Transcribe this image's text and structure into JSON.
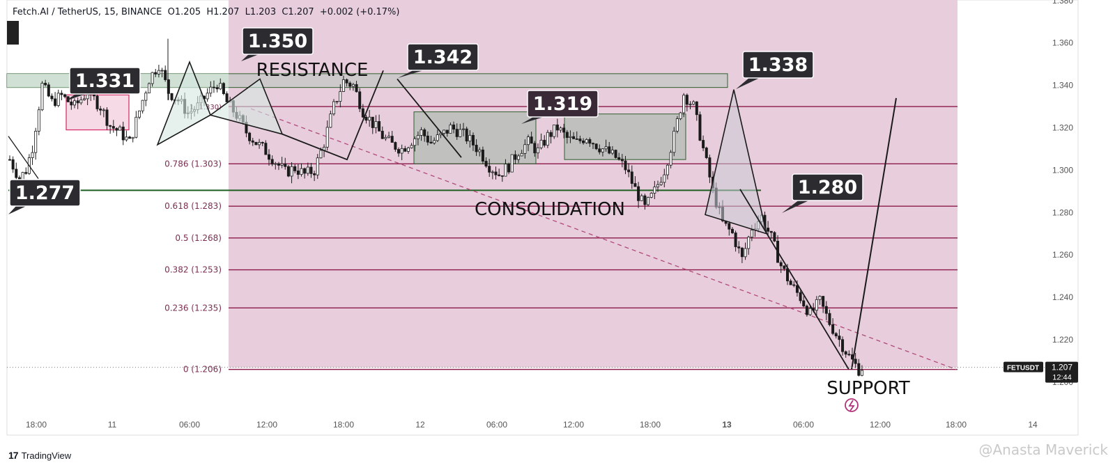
{
  "header": {
    "symbol": "Fetch.AI / TetherUS, 15, BINANCE",
    "ohlc": "O1.205  H1.207  L1.203  C1.207  +0.002 (+0.17%)"
  },
  "brand": {
    "logo": "17",
    "name": "TradingView",
    "icon": "tradingview-logo-icon"
  },
  "watermark": "@Anasta Maverick",
  "price_label": {
    "symbol": "FETUSDT",
    "price": "1.207",
    "countdown": "12:44"
  },
  "colors": {
    "zone_bg": "#e8cddc",
    "fib_line": "#8b1a4a",
    "fib_text": "#7b2e50",
    "candle": "#1a1a1a",
    "callout_bg": "#2b2b30",
    "callout_text": "#ffffff",
    "resistance_box": "#c8c8c8",
    "consolidation_box": "#9fb6a8",
    "trend": "#b04a7a",
    "support_line": "#1b5e20",
    "watermark": "#c9c9c9"
  },
  "chart_data": {
    "type": "candlestick",
    "title": "Fetch.AI / TetherUS, 15, BINANCE",
    "xlabel": "",
    "ylabel": "",
    "ylim": [
      1.193,
      1.38
    ],
    "grid": false,
    "x_tick_labels": [
      "18:00",
      "11",
      "06:00",
      "12:00",
      "18:00",
      "12",
      "06:00",
      "12:00",
      "18:00",
      "13",
      "06:00",
      "12:00",
      "18:00",
      "14"
    ],
    "y_tick_labels": [
      "1.380",
      "1.360",
      "1.340",
      "1.320",
      "1.300",
      "1.280",
      "1.260",
      "1.240",
      "1.220",
      "1.200"
    ],
    "fib_levels": [
      {
        "label": "1 (1.330)",
        "value": 1.33
      },
      {
        "label": "0.786 (1.303)",
        "value": 1.303
      },
      {
        "label": "0.618 (1.283)",
        "value": 1.283
      },
      {
        "label": "0.5 (1.268)",
        "value": 1.268
      },
      {
        "label": "0.382 (1.253)",
        "value": 1.253
      },
      {
        "label": "0.236 (1.235)",
        "value": 1.235
      },
      {
        "label": "0 (1.206)",
        "value": 1.206
      }
    ],
    "callouts": [
      "1.350",
      "1.331",
      "1.342",
      "1.319",
      "1.338",
      "1.280",
      "1.277"
    ],
    "annotations": [
      "RESISTANCE",
      "CONSOLIDATION",
      "SUPPORT"
    ],
    "last_price": 1.207,
    "close_path": [
      [
        0,
        1.305
      ],
      [
        3,
        1.296
      ],
      [
        5,
        1.3
      ],
      [
        7,
        1.311
      ],
      [
        10,
        1.34
      ],
      [
        13,
        1.332
      ],
      [
        16,
        1.335
      ],
      [
        20,
        1.33
      ],
      [
        24,
        1.337
      ],
      [
        28,
        1.33
      ],
      [
        31,
        1.321
      ],
      [
        34,
        1.318
      ],
      [
        37,
        1.313
      ],
      [
        40,
        1.328
      ],
      [
        43,
        1.343
      ],
      [
        46,
        1.35
      ],
      [
        49,
        1.337
      ],
      [
        52,
        1.333
      ],
      [
        55,
        1.327
      ],
      [
        58,
        1.33
      ],
      [
        61,
        1.336
      ],
      [
        64,
        1.341
      ],
      [
        67,
        1.332
      ],
      [
        70,
        1.326
      ],
      [
        73,
        1.318
      ],
      [
        76,
        1.313
      ],
      [
        79,
        1.309
      ],
      [
        82,
        1.304
      ],
      [
        85,
        1.299
      ],
      [
        88,
        1.301
      ],
      [
        91,
        1.298
      ],
      [
        94,
        1.3
      ],
      [
        97,
        1.313
      ],
      [
        100,
        1.33
      ],
      [
        103,
        1.342
      ],
      [
        106,
        1.34
      ],
      [
        109,
        1.328
      ],
      [
        112,
        1.322
      ],
      [
        115,
        1.316
      ],
      [
        118,
        1.312
      ],
      [
        121,
        1.31
      ],
      [
        124,
        1.314
      ],
      [
        127,
        1.318
      ],
      [
        130,
        1.313
      ],
      [
        133,
        1.316
      ],
      [
        136,
        1.32
      ],
      [
        139,
        1.318
      ],
      [
        142,
        1.314
      ],
      [
        145,
        1.309
      ],
      [
        148,
        1.302
      ],
      [
        151,
        1.298
      ],
      [
        154,
        1.302
      ],
      [
        157,
        1.309
      ],
      [
        160,
        1.313
      ],
      [
        163,
        1.309
      ],
      [
        166,
        1.316
      ],
      [
        169,
        1.32
      ],
      [
        172,
        1.315
      ],
      [
        175,
        1.313
      ],
      [
        178,
        1.316
      ],
      [
        181,
        1.312
      ],
      [
        184,
        1.309
      ],
      [
        187,
        1.306
      ],
      [
        190,
        1.301
      ],
      [
        193,
        1.291
      ],
      [
        196,
        1.282
      ],
      [
        199,
        1.29
      ],
      [
        202,
        1.3
      ],
      [
        205,
        1.316
      ],
      [
        208,
        1.336
      ],
      [
        211,
        1.33
      ],
      [
        214,
        1.31
      ],
      [
        217,
        1.29
      ],
      [
        220,
        1.275
      ],
      [
        223,
        1.27
      ],
      [
        226,
        1.258
      ],
      [
        229,
        1.273
      ],
      [
        232,
        1.278
      ],
      [
        235,
        1.268
      ],
      [
        238,
        1.255
      ],
      [
        241,
        1.246
      ],
      [
        244,
        1.24
      ],
      [
        247,
        1.232
      ],
      [
        250,
        1.238
      ],
      [
        253,
        1.228
      ],
      [
        256,
        1.22
      ],
      [
        259,
        1.212
      ],
      [
        262,
        1.206
      ],
      [
        263,
        1.207
      ]
    ]
  }
}
